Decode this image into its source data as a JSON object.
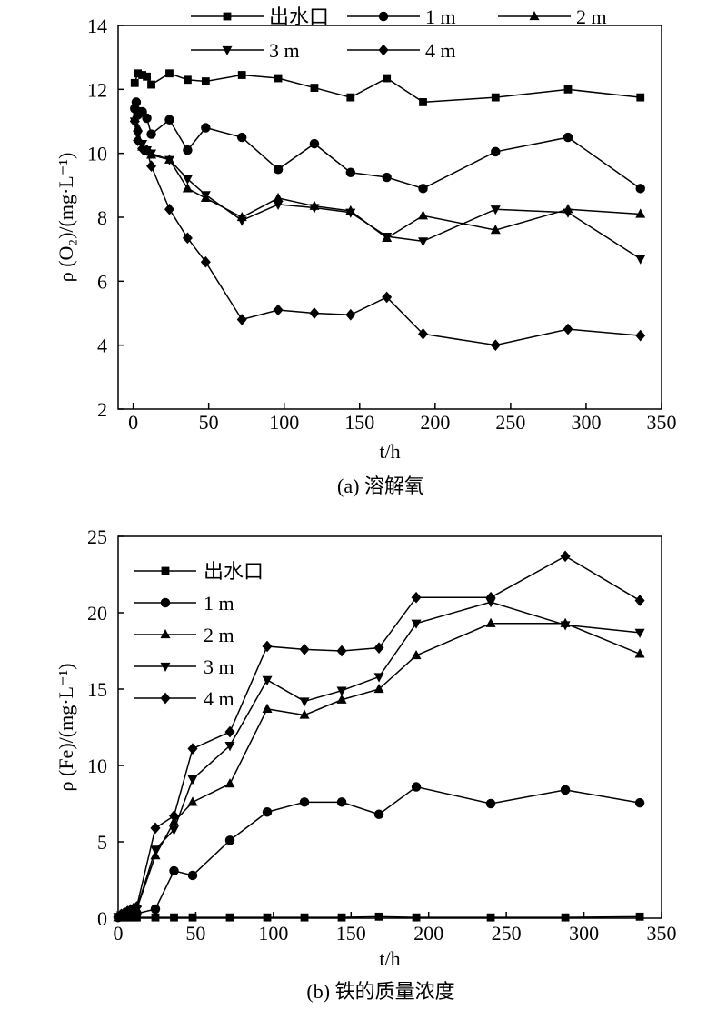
{
  "chart_data": [
    {
      "type": "line",
      "caption": "(a) 溶解氧",
      "xlabel": "t/h",
      "ylabel": "ρ (O₂)/(mg·L⁻¹)",
      "xlim": [
        -10,
        350
      ],
      "ylim": [
        2,
        14
      ],
      "xticks": [
        0,
        50,
        100,
        150,
        200,
        250,
        300,
        350
      ],
      "yticks": [
        2,
        4,
        6,
        8,
        10,
        12,
        14
      ],
      "legend": "top",
      "series": [
        {
          "name": "出水口",
          "marker": "square",
          "x": [
            1,
            3,
            6,
            9,
            12,
            24,
            36,
            48,
            72,
            96,
            120,
            144,
            168,
            192,
            240,
            288,
            336
          ],
          "y": [
            12.2,
            12.5,
            12.45,
            12.4,
            12.15,
            12.5,
            12.3,
            12.25,
            12.45,
            12.35,
            12.05,
            11.75,
            12.35,
            11.6,
            11.75,
            12.0,
            11.75
          ]
        },
        {
          "name": "1 m",
          "marker": "circle",
          "x": [
            1,
            2,
            3,
            4,
            6,
            9,
            12,
            24,
            36,
            48,
            72,
            96,
            120,
            144,
            168,
            192,
            240,
            288,
            336
          ],
          "y": [
            11.4,
            11.6,
            11.2,
            11.3,
            11.3,
            11.1,
            10.6,
            11.05,
            10.1,
            10.8,
            10.5,
            9.5,
            10.3,
            9.4,
            9.25,
            8.9,
            10.05,
            10.5,
            8.9
          ]
        },
        {
          "name": "2 m",
          "marker": "triangle-up",
          "x": [
            1,
            3,
            6,
            9,
            12,
            24,
            36,
            48,
            72,
            96,
            120,
            144,
            168,
            192,
            240,
            288,
            336
          ],
          "y": [
            11.1,
            10.8,
            10.2,
            10.05,
            9.95,
            9.8,
            8.9,
            8.6,
            8.0,
            8.6,
            8.35,
            8.2,
            7.35,
            8.05,
            7.6,
            8.25,
            8.1
          ]
        },
        {
          "name": "3 m",
          "marker": "triangle-down",
          "x": [
            1,
            3,
            6,
            9,
            12,
            24,
            36,
            48,
            72,
            96,
            120,
            144,
            168,
            192,
            240,
            288,
            336
          ],
          "y": [
            11.0,
            10.6,
            10.3,
            10.1,
            10.0,
            9.8,
            9.2,
            8.7,
            7.9,
            8.4,
            8.3,
            8.15,
            7.4,
            7.25,
            8.25,
            8.15,
            6.7
          ]
        },
        {
          "name": "4 m",
          "marker": "diamond",
          "x": [
            1,
            3,
            6,
            9,
            12,
            24,
            36,
            48,
            72,
            96,
            120,
            144,
            168,
            192,
            240,
            288,
            336
          ],
          "y": [
            11.0,
            10.4,
            10.15,
            10.1,
            9.6,
            8.25,
            7.35,
            6.6,
            4.8,
            5.1,
            5.0,
            4.95,
            5.5,
            4.35,
            4.0,
            4.5,
            4.3
          ]
        }
      ]
    },
    {
      "type": "line",
      "caption": "(b) 铁的质量浓度",
      "xlabel": "t/h",
      "ylabel": "ρ (Fe)/(mg·L⁻¹)",
      "xlim": [
        0,
        350
      ],
      "ylim": [
        0,
        25
      ],
      "xticks": [
        0,
        50,
        100,
        150,
        200,
        250,
        300,
        350
      ],
      "yticks": [
        0,
        5,
        10,
        15,
        20,
        25
      ],
      "legend": "top-left",
      "series": [
        {
          "name": "出水口",
          "marker": "square",
          "x": [
            0,
            2,
            4,
            6,
            8,
            10,
            12,
            24,
            36,
            48,
            72,
            96,
            120,
            144,
            168,
            192,
            240,
            288,
            336
          ],
          "y": [
            0.05,
            0.05,
            0.05,
            0.05,
            0.05,
            0.05,
            0.05,
            0.05,
            0.05,
            0.05,
            0.05,
            0.05,
            0.05,
            0.05,
            0.1,
            0.05,
            0.05,
            0.05,
            0.1
          ]
        },
        {
          "name": "1 m",
          "marker": "circle",
          "x": [
            0,
            2,
            4,
            6,
            8,
            10,
            12,
            24,
            36,
            48,
            72,
            96,
            120,
            144,
            168,
            192,
            240,
            288,
            336
          ],
          "y": [
            0.05,
            0.1,
            0.1,
            0.15,
            0.2,
            0.25,
            0.3,
            0.6,
            3.1,
            2.8,
            5.1,
            6.95,
            7.6,
            7.6,
            6.8,
            8.6,
            7.5,
            8.4,
            7.55
          ]
        },
        {
          "name": "2 m",
          "marker": "triangle-up",
          "x": [
            0,
            2,
            4,
            6,
            8,
            10,
            12,
            24,
            36,
            48,
            72,
            96,
            120,
            144,
            168,
            192,
            240,
            288,
            336
          ],
          "y": [
            0.05,
            0.15,
            0.2,
            0.3,
            0.4,
            0.5,
            0.6,
            4.1,
            6.3,
            7.6,
            8.8,
            13.7,
            13.3,
            14.3,
            15.0,
            17.2,
            19.3,
            19.3,
            17.3
          ]
        },
        {
          "name": "3 m",
          "marker": "triangle-down",
          "x": [
            0,
            2,
            4,
            6,
            8,
            10,
            12,
            24,
            36,
            48,
            72,
            96,
            120,
            144,
            168,
            192,
            240,
            288,
            336
          ],
          "y": [
            0.1,
            0.2,
            0.3,
            0.35,
            0.45,
            0.5,
            0.6,
            4.5,
            5.8,
            9.1,
            11.3,
            15.6,
            14.2,
            14.9,
            15.8,
            19.3,
            20.7,
            19.2,
            18.7
          ]
        },
        {
          "name": "4 m",
          "marker": "diamond",
          "x": [
            0,
            2,
            4,
            6,
            8,
            10,
            12,
            24,
            36,
            48,
            72,
            96,
            120,
            144,
            168,
            192,
            240,
            288,
            336
          ],
          "y": [
            0.1,
            0.25,
            0.35,
            0.45,
            0.55,
            0.65,
            0.75,
            5.9,
            6.7,
            11.1,
            12.2,
            17.8,
            17.6,
            17.5,
            17.7,
            21.0,
            21.0,
            23.7,
            20.8
          ]
        }
      ]
    }
  ]
}
